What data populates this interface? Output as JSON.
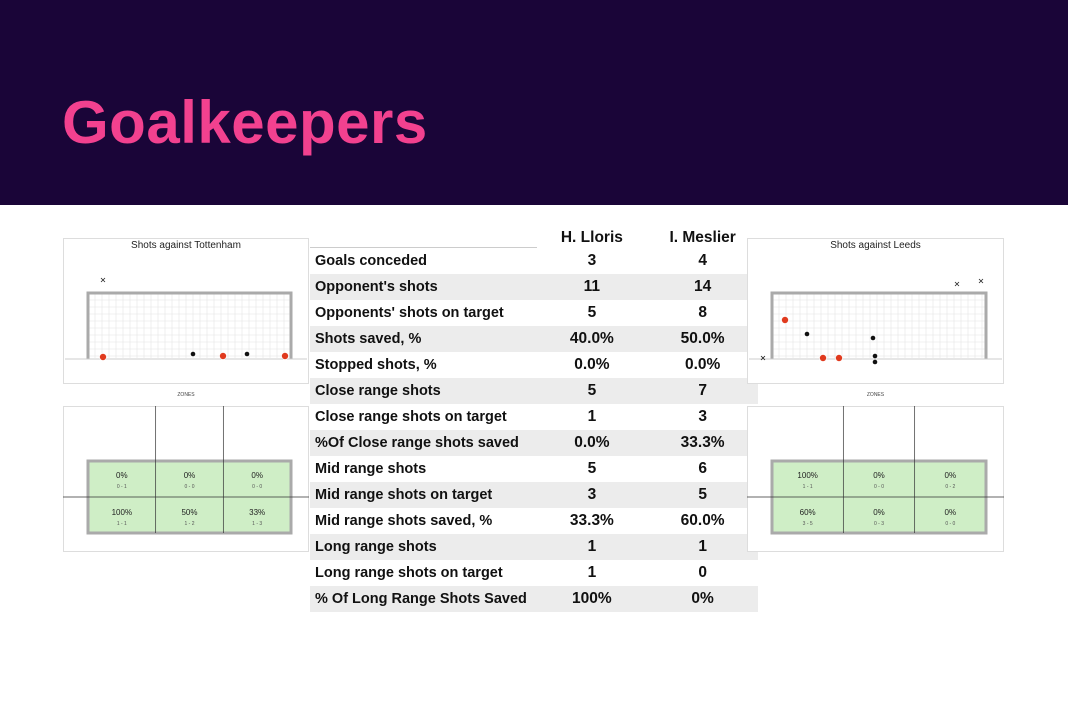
{
  "header": {
    "title": "Goalkeepers"
  },
  "left_panel": {
    "title": "Shots against Tottenham",
    "zones_label": "ZONES",
    "zones": [
      [
        {
          "pct": "0%",
          "ratio": "0 - 1"
        },
        {
          "pct": "0%",
          "ratio": "0 - 0"
        },
        {
          "pct": "0%",
          "ratio": "0 - 0"
        }
      ],
      [
        {
          "pct": "100%",
          "ratio": "1 - 1"
        },
        {
          "pct": "50%",
          "ratio": "1 - 2"
        },
        {
          "pct": "33%",
          "ratio": "1 - 3"
        }
      ]
    ]
  },
  "right_panel": {
    "title": "Shots against Leeds",
    "zones_label": "ZONES",
    "zones": [
      [
        {
          "pct": "100%",
          "ratio": "1 - 1"
        },
        {
          "pct": "0%",
          "ratio": "0 - 0"
        },
        {
          "pct": "0%",
          "ratio": "0 - 2"
        }
      ],
      [
        {
          "pct": "60%",
          "ratio": "3 - 5"
        },
        {
          "pct": "0%",
          "ratio": "0 - 3"
        },
        {
          "pct": "0%",
          "ratio": "0 - 0"
        }
      ]
    ]
  },
  "table": {
    "columns": [
      "H. Lloris",
      "I. Meslier"
    ],
    "rows": [
      [
        "Goals conceded",
        "3",
        "4"
      ],
      [
        "Opponent's shots",
        "11",
        "14"
      ],
      [
        "Opponents' shots  on target",
        "5",
        "8"
      ],
      [
        "Shots saved, %",
        "40.0%",
        "50.0%"
      ],
      [
        "Stopped shots, %",
        "0.0%",
        "0.0%"
      ],
      [
        "Close range shots",
        "5",
        "7"
      ],
      [
        "Close range shots on target",
        "1",
        "3"
      ],
      [
        "%Of Close range shots saved",
        "0.0%",
        "33.3%"
      ],
      [
        "Mid range shots",
        "5",
        "6"
      ],
      [
        "Mid range shots on target",
        "3",
        "5"
      ],
      [
        "Mid range shots saved, %",
        "33.3%",
        "60.0%"
      ],
      [
        "Long range shots",
        "1",
        "1"
      ],
      [
        "Long range shots on target",
        "1",
        "0"
      ],
      [
        "% Of Long Range Shots Saved",
        "100%",
        "0%"
      ]
    ]
  }
}
